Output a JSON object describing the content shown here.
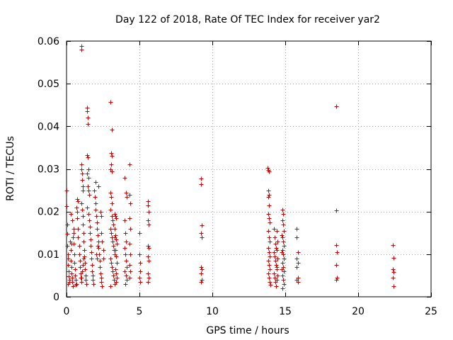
{
  "chart_data": {
    "type": "scatter",
    "title": "Day 122 of 2018, Rate Of TEC Index for receiver yar2",
    "xlabel": "GPS time / hours",
    "ylabel": "ROTI / TECUs",
    "xlim": [
      0,
      25
    ],
    "ylim": [
      0,
      0.06
    ],
    "xticks": [
      0,
      5,
      10,
      15,
      20,
      25
    ],
    "yticks": [
      0,
      0.01,
      0.02,
      0.03,
      0.04,
      0.05,
      0.06
    ],
    "ytick_labels": [
      "0",
      "0.01",
      "0.02",
      "0.03",
      "0.04",
      "0.05",
      "0.06"
    ],
    "grid": true,
    "marker": "+",
    "color": "#dd0000",
    "series": [
      {
        "name": "ROTI",
        "points": [
          [
            0.0,
            0.025
          ],
          [
            0.0,
            0.0212
          ],
          [
            0.05,
            0.017
          ],
          [
            0.05,
            0.0148
          ],
          [
            0.05,
            0.012
          ],
          [
            0.1,
            0.01
          ],
          [
            0.1,
            0.009
          ],
          [
            0.1,
            0.0075
          ],
          [
            0.15,
            0.006
          ],
          [
            0.15,
            0.0048
          ],
          [
            0.2,
            0.004
          ],
          [
            0.2,
            0.0035
          ],
          [
            0.1,
            0.003
          ],
          [
            0.25,
            0.013
          ],
          [
            0.3,
            0.011
          ],
          [
            0.3,
            0.0085
          ],
          [
            0.35,
            0.007
          ],
          [
            0.35,
            0.0055
          ],
          [
            0.4,
            0.0045
          ],
          [
            0.4,
            0.0035
          ],
          [
            0.45,
            0.0025
          ],
          [
            0.5,
            0.015
          ],
          [
            0.5,
            0.0125
          ],
          [
            0.55,
            0.01
          ],
          [
            0.55,
            0.008
          ],
          [
            0.6,
            0.0065
          ],
          [
            0.6,
            0.005
          ],
          [
            0.65,
            0.004
          ],
          [
            0.65,
            0.0028
          ],
          [
            0.3,
            0.0195
          ],
          [
            0.4,
            0.018
          ],
          [
            0.5,
            0.016
          ],
          [
            0.45,
            0.014
          ],
          [
            0.35,
            0.0125
          ],
          [
            0.7,
            0.021
          ],
          [
            0.75,
            0.02
          ],
          [
            0.75,
            0.0185
          ],
          [
            0.8,
            0.016
          ],
          [
            0.8,
            0.014
          ],
          [
            0.85,
            0.012
          ],
          [
            0.85,
            0.01
          ],
          [
            0.9,
            0.0085
          ],
          [
            0.9,
            0.007
          ],
          [
            0.95,
            0.0055
          ],
          [
            0.95,
            0.0045
          ],
          [
            1.0,
            0.0035
          ],
          [
            0.7,
            0.003
          ],
          [
            0.75,
            0.023
          ],
          [
            0.8,
            0.0225
          ],
          [
            1.0,
            0.0588
          ],
          [
            1.0,
            0.058
          ],
          [
            1.0,
            0.031
          ],
          [
            1.0,
            0.03
          ],
          [
            1.05,
            0.029
          ],
          [
            1.05,
            0.0275
          ],
          [
            1.1,
            0.026
          ],
          [
            1.1,
            0.025
          ],
          [
            1.0,
            0.022
          ],
          [
            1.05,
            0.0205
          ],
          [
            1.1,
            0.019
          ],
          [
            1.1,
            0.017
          ],
          [
            1.15,
            0.015
          ],
          [
            1.15,
            0.013
          ],
          [
            1.2,
            0.011
          ],
          [
            1.2,
            0.0095
          ],
          [
            1.25,
            0.008
          ],
          [
            1.25,
            0.0065
          ],
          [
            1.3,
            0.005
          ],
          [
            1.3,
            0.004
          ],
          [
            1.35,
            0.003
          ],
          [
            1.0,
            0.0045
          ],
          [
            1.05,
            0.006
          ],
          [
            1.1,
            0.0075
          ],
          [
            1.15,
            0.009
          ],
          [
            1.4,
            0.0443
          ],
          [
            1.4,
            0.0435
          ],
          [
            1.45,
            0.042
          ],
          [
            1.45,
            0.0405
          ],
          [
            1.4,
            0.0332
          ],
          [
            1.45,
            0.0328
          ],
          [
            1.5,
            0.03
          ],
          [
            1.4,
            0.029
          ],
          [
            1.5,
            0.028
          ],
          [
            1.45,
            0.026
          ],
          [
            1.5,
            0.025
          ],
          [
            1.55,
            0.024
          ],
          [
            1.4,
            0.021
          ],
          [
            1.5,
            0.0195
          ],
          [
            1.55,
            0.018
          ],
          [
            1.6,
            0.0165
          ],
          [
            1.6,
            0.015
          ],
          [
            1.65,
            0.0135
          ],
          [
            1.65,
            0.012
          ],
          [
            1.7,
            0.0105
          ],
          [
            1.7,
            0.009
          ],
          [
            1.75,
            0.0075
          ],
          [
            1.75,
            0.006
          ],
          [
            1.8,
            0.005
          ],
          [
            1.8,
            0.004
          ],
          [
            1.85,
            0.003
          ],
          [
            1.9,
            0.025
          ],
          [
            1.95,
            0.0235
          ],
          [
            2.0,
            0.022
          ],
          [
            2.0,
            0.0205
          ],
          [
            2.05,
            0.019
          ],
          [
            2.1,
            0.0175
          ],
          [
            2.1,
            0.016
          ],
          [
            2.15,
            0.0145
          ],
          [
            2.2,
            0.013
          ],
          [
            2.2,
            0.0115
          ],
          [
            2.25,
            0.01
          ],
          [
            2.3,
            0.0085
          ],
          [
            2.3,
            0.007
          ],
          [
            2.35,
            0.0055
          ],
          [
            2.4,
            0.0045
          ],
          [
            2.4,
            0.0035
          ],
          [
            2.45,
            0.0025
          ],
          [
            2.2,
            0.026
          ],
          [
            2.0,
            0.027
          ],
          [
            2.15,
            0.012
          ],
          [
            2.05,
            0.01
          ],
          [
            2.1,
            0.009
          ],
          [
            2.4,
            0.015
          ],
          [
            2.45,
            0.013
          ],
          [
            2.5,
            0.011
          ],
          [
            2.5,
            0.009
          ],
          [
            2.35,
            0.02
          ],
          [
            2.4,
            0.019
          ],
          [
            3.0,
            0.0457
          ],
          [
            3.1,
            0.0392
          ],
          [
            3.05,
            0.0338
          ],
          [
            3.1,
            0.033
          ],
          [
            3.0,
            0.03
          ],
          [
            3.1,
            0.0295
          ],
          [
            3.05,
            0.031
          ],
          [
            3.0,
            0.0245
          ],
          [
            3.05,
            0.0235
          ],
          [
            3.1,
            0.022
          ],
          [
            3.0,
            0.0205
          ],
          [
            3.1,
            0.019
          ],
          [
            3.15,
            0.018
          ],
          [
            3.2,
            0.017
          ],
          [
            3.0,
            0.016
          ],
          [
            3.05,
            0.015
          ],
          [
            3.1,
            0.014
          ],
          [
            3.15,
            0.013
          ],
          [
            3.2,
            0.012
          ],
          [
            3.25,
            0.011
          ],
          [
            3.3,
            0.01
          ],
          [
            3.0,
            0.009
          ],
          [
            3.05,
            0.008
          ],
          [
            3.1,
            0.007
          ],
          [
            3.15,
            0.006
          ],
          [
            3.2,
            0.005
          ],
          [
            3.25,
            0.004
          ],
          [
            3.3,
            0.003
          ],
          [
            3.0,
            0.0025
          ],
          [
            3.3,
            0.0195
          ],
          [
            3.35,
            0.019
          ],
          [
            3.4,
            0.0185
          ],
          [
            3.3,
            0.016
          ],
          [
            3.35,
            0.0145
          ],
          [
            3.4,
            0.0135
          ],
          [
            3.45,
            0.0125
          ],
          [
            3.35,
            0.011
          ],
          [
            3.4,
            0.0095
          ],
          [
            3.45,
            0.008
          ],
          [
            3.35,
            0.0065
          ],
          [
            3.4,
            0.0055
          ],
          [
            3.45,
            0.0045
          ],
          [
            3.4,
            0.0035
          ],
          [
            3.3,
            0.014
          ],
          [
            4.0,
            0.028
          ],
          [
            4.1,
            0.0245
          ],
          [
            4.15,
            0.0235
          ],
          [
            4.0,
            0.018
          ],
          [
            4.05,
            0.015
          ],
          [
            4.1,
            0.013
          ],
          [
            4.0,
            0.0115
          ],
          [
            4.05,
            0.01
          ],
          [
            4.1,
            0.0085
          ],
          [
            4.15,
            0.007
          ],
          [
            4.0,
            0.006
          ],
          [
            4.1,
            0.005
          ],
          [
            4.15,
            0.004
          ],
          [
            4.05,
            0.003
          ],
          [
            4.3,
            0.031
          ],
          [
            4.3,
            0.024
          ],
          [
            4.35,
            0.022
          ],
          [
            4.3,
            0.0185
          ],
          [
            4.35,
            0.016
          ],
          [
            4.3,
            0.0125
          ],
          [
            4.35,
            0.01
          ],
          [
            4.3,
            0.0075
          ],
          [
            4.35,
            0.006
          ],
          [
            4.3,
            0.0045
          ],
          [
            5.0,
            0.015
          ],
          [
            5.0,
            0.01
          ],
          [
            5.05,
            0.008
          ],
          [
            5.05,
            0.006
          ],
          [
            5.0,
            0.0045
          ],
          [
            5.05,
            0.0035
          ],
          [
            5.6,
            0.0225
          ],
          [
            5.6,
            0.0215
          ],
          [
            5.65,
            0.02
          ],
          [
            5.6,
            0.018
          ],
          [
            5.65,
            0.017
          ],
          [
            5.6,
            0.012
          ],
          [
            5.65,
            0.0115
          ],
          [
            5.6,
            0.0095
          ],
          [
            5.65,
            0.0085
          ],
          [
            5.6,
            0.0055
          ],
          [
            5.65,
            0.0045
          ],
          [
            5.6,
            0.0035
          ],
          [
            9.2,
            0.0278
          ],
          [
            9.2,
            0.0265
          ],
          [
            9.25,
            0.0168
          ],
          [
            9.2,
            0.015
          ],
          [
            9.25,
            0.014
          ],
          [
            9.2,
            0.007
          ],
          [
            9.25,
            0.0065
          ],
          [
            9.2,
            0.0055
          ],
          [
            9.25,
            0.004
          ],
          [
            9.2,
            0.0035
          ],
          [
            13.8,
            0.0302
          ],
          [
            13.85,
            0.0298
          ],
          [
            13.9,
            0.0295
          ],
          [
            13.85,
            0.025
          ],
          [
            13.9,
            0.024
          ],
          [
            13.85,
            0.0235
          ],
          [
            13.9,
            0.0215
          ],
          [
            13.85,
            0.0195
          ],
          [
            13.9,
            0.0185
          ],
          [
            13.95,
            0.0175
          ],
          [
            13.85,
            0.0155
          ],
          [
            13.9,
            0.014
          ],
          [
            13.95,
            0.013
          ],
          [
            13.85,
            0.0115
          ],
          [
            13.9,
            0.0105
          ],
          [
            13.95,
            0.0095
          ],
          [
            13.85,
            0.0085
          ],
          [
            13.9,
            0.0075
          ],
          [
            13.95,
            0.0065
          ],
          [
            13.85,
            0.0055
          ],
          [
            13.9,
            0.0045
          ],
          [
            13.95,
            0.0035
          ],
          [
            14.0,
            0.0028
          ],
          [
            14.2,
            0.016
          ],
          [
            14.25,
            0.014
          ],
          [
            14.3,
            0.0125
          ],
          [
            14.35,
            0.0115
          ],
          [
            14.2,
            0.0105
          ],
          [
            14.25,
            0.0095
          ],
          [
            14.3,
            0.0085
          ],
          [
            14.35,
            0.0075
          ],
          [
            14.4,
            0.0065
          ],
          [
            14.2,
            0.0055
          ],
          [
            14.25,
            0.0045
          ],
          [
            14.3,
            0.0035
          ],
          [
            14.35,
            0.0025
          ],
          [
            14.4,
            0.0155
          ],
          [
            14.45,
            0.013
          ],
          [
            14.4,
            0.011
          ],
          [
            14.45,
            0.009
          ],
          [
            14.4,
            0.007
          ],
          [
            14.45,
            0.005
          ],
          [
            14.4,
            0.004
          ],
          [
            14.8,
            0.0205
          ],
          [
            14.85,
            0.0195
          ],
          [
            14.8,
            0.018
          ],
          [
            14.85,
            0.017
          ],
          [
            14.9,
            0.0155
          ],
          [
            14.8,
            0.014
          ],
          [
            14.85,
            0.013
          ],
          [
            14.9,
            0.012
          ],
          [
            14.8,
            0.011
          ],
          [
            14.85,
            0.01
          ],
          [
            14.9,
            0.009
          ],
          [
            14.8,
            0.008
          ],
          [
            14.85,
            0.007
          ],
          [
            14.9,
            0.006
          ],
          [
            14.8,
            0.005
          ],
          [
            14.85,
            0.004
          ],
          [
            14.9,
            0.003
          ],
          [
            14.8,
            0.002
          ],
          [
            14.75,
            0.0145
          ],
          [
            14.75,
            0.0105
          ],
          [
            14.75,
            0.0065
          ],
          [
            15.8,
            0.016
          ],
          [
            15.8,
            0.014
          ],
          [
            15.85,
            0.0105
          ],
          [
            15.8,
            0.009
          ],
          [
            15.85,
            0.008
          ],
          [
            15.8,
            0.007
          ],
          [
            15.85,
            0.0045
          ],
          [
            15.8,
            0.004
          ],
          [
            15.85,
            0.0035
          ],
          [
            18.5,
            0.0447
          ],
          [
            18.5,
            0.0202
          ],
          [
            18.5,
            0.0122
          ],
          [
            18.55,
            0.0105
          ],
          [
            18.5,
            0.0075
          ],
          [
            18.55,
            0.0045
          ],
          [
            18.5,
            0.004
          ],
          [
            22.4,
            0.0122
          ],
          [
            22.45,
            0.0092
          ],
          [
            22.4,
            0.0065
          ],
          [
            22.45,
            0.0058
          ],
          [
            22.4,
            0.0045
          ],
          [
            22.45,
            0.0025
          ]
        ]
      }
    ]
  }
}
